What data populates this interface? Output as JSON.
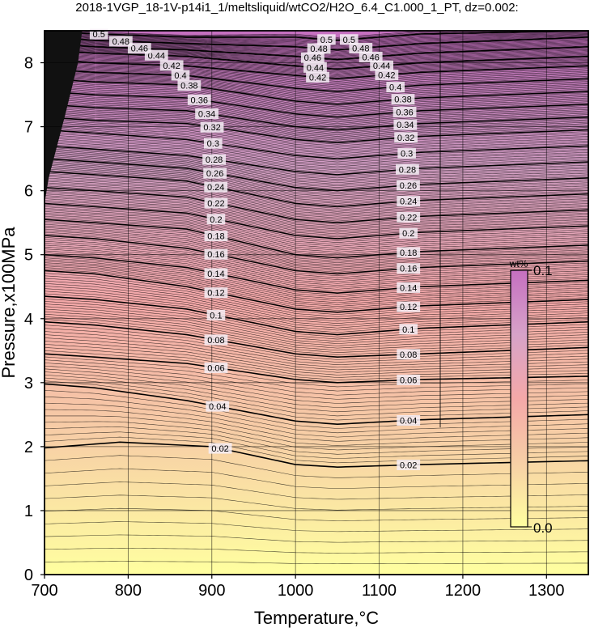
{
  "title": "2018-1VGP_18-1V-p14i1_1/meltsliquid/wtCO2/H2O_6.4_C1.000_1_PT, dz=0.002:",
  "chart_data": {
    "type": "heatmap",
    "xlabel": "Temperature,°C",
    "ylabel": "Pressure,x100MPa",
    "xlim": [
      700,
      1350
    ],
    "ylim": [
      0,
      8.5
    ],
    "xticks": [
      "700",
      "800",
      "900",
      "1000",
      "1100",
      "1200",
      "1300"
    ],
    "yticks": [
      "0",
      "1",
      "2",
      "3",
      "4",
      "5",
      "6",
      "7",
      "8"
    ],
    "colorbar": {
      "label": "wt%",
      "min_label": "0.0",
      "max_label": "0.1",
      "range": [
        0.0,
        0.1
      ],
      "colors": [
        "#ffffa0",
        "#f7cfa6",
        "#f4a8a8",
        "#d7a2c8",
        "#c56fc0"
      ]
    },
    "contour_interval": 0.002,
    "labeled_contours": [
      {
        "value": 0.02,
        "label": "0.02",
        "p_at_T": [
          [
            700,
            1.98
          ],
          [
            790,
            2.07
          ],
          [
            900,
            2.0
          ],
          [
            1000,
            1.72
          ],
          [
            1050,
            1.68
          ],
          [
            1150,
            1.72
          ],
          [
            1350,
            1.78
          ]
        ]
      },
      {
        "value": 0.04,
        "label": "0.04",
        "p_at_T": [
          [
            700,
            2.98
          ],
          [
            760,
            2.92
          ],
          [
            870,
            2.72
          ],
          [
            1000,
            2.4
          ],
          [
            1050,
            2.35
          ],
          [
            1150,
            2.42
          ],
          [
            1350,
            2.5
          ]
        ]
      },
      {
        "value": 0.06,
        "label": "0.06",
        "p_at_T": [
          [
            700,
            3.45
          ],
          [
            760,
            3.4
          ],
          [
            870,
            3.3
          ],
          [
            1000,
            3.05
          ],
          [
            1050,
            3.0
          ],
          [
            1150,
            3.05
          ],
          [
            1350,
            3.1
          ]
        ]
      },
      {
        "value": 0.08,
        "label": "0.08",
        "p_at_T": [
          [
            700,
            3.95
          ],
          [
            760,
            3.9
          ],
          [
            870,
            3.75
          ],
          [
            1000,
            3.45
          ],
          [
            1050,
            3.4
          ],
          [
            1150,
            3.45
          ],
          [
            1350,
            3.55
          ]
        ]
      },
      {
        "value": 0.1,
        "label": "0.1",
        "p_at_T": [
          [
            700,
            4.35
          ],
          [
            760,
            4.3
          ],
          [
            870,
            4.15
          ],
          [
            1000,
            3.8
          ],
          [
            1050,
            3.75
          ],
          [
            1150,
            3.85
          ],
          [
            1350,
            3.95
          ]
        ]
      },
      {
        "value": 0.12,
        "label": "0.12",
        "p_at_T": [
          [
            700,
            4.75
          ],
          [
            760,
            4.7
          ],
          [
            870,
            4.5
          ],
          [
            1000,
            4.15
          ],
          [
            1050,
            4.1
          ],
          [
            1150,
            4.2
          ],
          [
            1350,
            4.3
          ]
        ]
      },
      {
        "value": 0.14,
        "label": "0.14",
        "p_at_T": [
          [
            700,
            5.0
          ],
          [
            760,
            4.95
          ],
          [
            870,
            4.8
          ],
          [
            1000,
            4.45
          ],
          [
            1050,
            4.4
          ],
          [
            1150,
            4.5
          ],
          [
            1350,
            4.6
          ]
        ]
      },
      {
        "value": 0.16,
        "label": "0.16",
        "p_at_T": [
          [
            700,
            5.3
          ],
          [
            760,
            5.25
          ],
          [
            870,
            5.1
          ],
          [
            1000,
            4.75
          ],
          [
            1050,
            4.7
          ],
          [
            1150,
            4.8
          ],
          [
            1350,
            4.9
          ]
        ]
      },
      {
        "value": 0.18,
        "label": "0.18",
        "p_at_T": [
          [
            700,
            5.55
          ],
          [
            760,
            5.5
          ],
          [
            870,
            5.4
          ],
          [
            1000,
            5.0
          ],
          [
            1050,
            4.95
          ],
          [
            1150,
            5.05
          ],
          [
            1350,
            5.15
          ]
        ]
      },
      {
        "value": 0.2,
        "label": "0.2",
        "p_at_T": [
          [
            700,
            5.8
          ],
          [
            760,
            5.75
          ],
          [
            870,
            5.65
          ],
          [
            1000,
            5.3
          ],
          [
            1050,
            5.25
          ],
          [
            1150,
            5.35
          ],
          [
            1350,
            5.45
          ]
        ]
      },
      {
        "value": 0.22,
        "label": "0.22",
        "p_at_T": [
          [
            700,
            6.05
          ],
          [
            760,
            6.0
          ],
          [
            870,
            5.9
          ],
          [
            1000,
            5.55
          ],
          [
            1050,
            5.5
          ],
          [
            1150,
            5.6
          ],
          [
            1350,
            5.7
          ]
        ]
      },
      {
        "value": 0.24,
        "label": "0.24",
        "p_at_T": [
          [
            700,
            6.3
          ],
          [
            760,
            6.25
          ],
          [
            870,
            6.15
          ],
          [
            1000,
            5.8
          ],
          [
            1050,
            5.75
          ],
          [
            1150,
            5.85
          ],
          [
            1350,
            5.95
          ]
        ]
      },
      {
        "value": 0.26,
        "label": "0.26",
        "p_at_T": [
          [
            700,
            6.5
          ],
          [
            760,
            6.45
          ],
          [
            870,
            6.35
          ],
          [
            1000,
            6.05
          ],
          [
            1050,
            6.0
          ],
          [
            1150,
            6.1
          ],
          [
            1350,
            6.2
          ]
        ]
      },
      {
        "value": 0.28,
        "label": "0.28",
        "p_at_T": [
          [
            700,
            6.7
          ],
          [
            760,
            6.65
          ],
          [
            870,
            6.55
          ],
          [
            1000,
            6.3
          ],
          [
            1050,
            6.25
          ],
          [
            1150,
            6.35
          ],
          [
            1350,
            6.45
          ]
        ]
      },
      {
        "value": 0.3,
        "label": "0.3",
        "p_at_T": [
          [
            700,
            6.95
          ],
          [
            760,
            6.9
          ],
          [
            870,
            6.8
          ],
          [
            1000,
            6.55
          ],
          [
            1050,
            6.5
          ],
          [
            1150,
            6.6
          ],
          [
            1350,
            6.7
          ]
        ]
      },
      {
        "value": 0.32,
        "label": "0.32",
        "p_at_T": [
          [
            700,
            7.15
          ],
          [
            760,
            7.1
          ],
          [
            870,
            7.05
          ],
          [
            1000,
            6.8
          ],
          [
            1050,
            6.75
          ],
          [
            1150,
            6.85
          ],
          [
            1350,
            6.95
          ]
        ]
      },
      {
        "value": 0.34,
        "label": "0.34",
        "p_at_T": [
          [
            700,
            7.35
          ],
          [
            760,
            7.3
          ],
          [
            870,
            7.25
          ],
          [
            1000,
            7.0
          ],
          [
            1050,
            6.95
          ],
          [
            1150,
            7.05
          ],
          [
            1350,
            7.15
          ]
        ]
      },
      {
        "value": 0.36,
        "label": "0.36",
        "p_at_T": [
          [
            700,
            7.55
          ],
          [
            760,
            7.5
          ],
          [
            870,
            7.45
          ],
          [
            1000,
            7.2
          ],
          [
            1050,
            7.15
          ],
          [
            1150,
            7.25
          ],
          [
            1350,
            7.35
          ]
        ]
      },
      {
        "value": 0.38,
        "label": "0.38",
        "p_at_T": [
          [
            700,
            7.75
          ],
          [
            760,
            7.7
          ],
          [
            870,
            7.65
          ],
          [
            1000,
            7.4
          ],
          [
            1050,
            7.35
          ],
          [
            1150,
            7.45
          ],
          [
            1350,
            7.55
          ]
        ]
      },
      {
        "value": 0.4,
        "label": "0.4",
        "p_at_T": [
          [
            700,
            7.9
          ],
          [
            760,
            7.85
          ],
          [
            870,
            7.8
          ],
          [
            1000,
            7.6
          ],
          [
            1050,
            7.55
          ],
          [
            1150,
            7.65
          ],
          [
            1350,
            7.75
          ]
        ]
      },
      {
        "value": 0.42,
        "label": "0.42",
        "p_at_T": [
          [
            700,
            8.05
          ],
          [
            760,
            8.0
          ],
          [
            870,
            7.95
          ],
          [
            1000,
            7.8
          ],
          [
            1050,
            7.75
          ],
          [
            1150,
            7.85
          ],
          [
            1350,
            7.95
          ]
        ]
      },
      {
        "value": 0.44,
        "label": "0.44",
        "p_at_T": [
          [
            700,
            8.2
          ],
          [
            760,
            8.15
          ],
          [
            870,
            8.1
          ],
          [
            1000,
            7.95
          ],
          [
            1050,
            7.9
          ],
          [
            1150,
            8.0
          ],
          [
            1350,
            8.1
          ]
        ]
      },
      {
        "value": 0.46,
        "label": "0.46",
        "p_at_T": [
          [
            700,
            8.3
          ],
          [
            760,
            8.25
          ],
          [
            870,
            8.2
          ],
          [
            1000,
            8.1
          ],
          [
            1050,
            8.05
          ],
          [
            1150,
            8.15
          ],
          [
            1350,
            8.25
          ]
        ]
      },
      {
        "value": 0.48,
        "label": "0.48",
        "p_at_T": [
          [
            700,
            8.4
          ],
          [
            760,
            8.35
          ],
          [
            870,
            8.3
          ],
          [
            1000,
            8.25
          ],
          [
            1050,
            8.2
          ],
          [
            1150,
            8.3
          ],
          [
            1350,
            8.4
          ]
        ]
      },
      {
        "value": 0.5,
        "label": "0.5",
        "p_at_T": [
          [
            700,
            8.5
          ],
          [
            760,
            8.45
          ],
          [
            870,
            8.4
          ],
          [
            1000,
            8.4
          ],
          [
            1050,
            8.35
          ],
          [
            1150,
            8.45
          ],
          [
            1350,
            8.5
          ]
        ]
      }
    ],
    "left_label_path": [
      [
        765,
        8.45
      ],
      [
        800,
        8.3
      ],
      [
        845,
        8.05
      ],
      [
        880,
        7.55
      ],
      [
        900,
        7.05
      ],
      [
        905,
        6.0
      ],
      [
        905,
        5.0
      ],
      [
        905,
        4.0
      ],
      [
        905,
        3.0
      ],
      [
        910,
        2.0
      ]
    ],
    "right_label_path": [
      [
        1060,
        8.4
      ],
      [
        1100,
        8.0
      ],
      [
        1130,
        7.4
      ],
      [
        1135,
        6.0
      ],
      [
        1135,
        5.0
      ],
      [
        1135,
        4.0
      ],
      [
        1135,
        3.0
      ],
      [
        1135,
        2.0
      ]
    ],
    "center_label_path": [
      [
        1040,
        8.4
      ],
      [
        1020,
        8.1
      ],
      [
        1030,
        7.6
      ],
      [
        1050,
        7.35
      ]
    ],
    "grid": true
  }
}
